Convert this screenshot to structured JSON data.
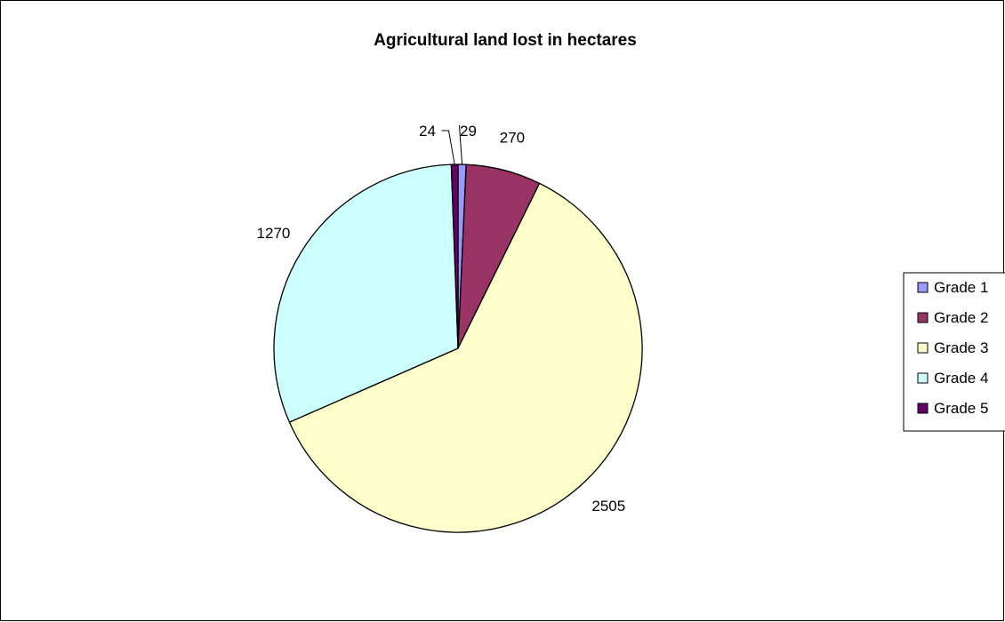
{
  "chart_data": {
    "type": "pie",
    "title": "Agricultural land lost in hectares",
    "categories": [
      "Grade 1",
      "Grade 2",
      "Grade 3",
      "Grade 4",
      "Grade 5"
    ],
    "values": [
      29,
      270,
      2505,
      1270,
      24
    ],
    "colors": [
      "#9999FF",
      "#993366",
      "#FFFFCC",
      "#CCFFFF",
      "#660066"
    ],
    "legend_position": "right",
    "start_angle": "12 o'clock, clockwise"
  }
}
